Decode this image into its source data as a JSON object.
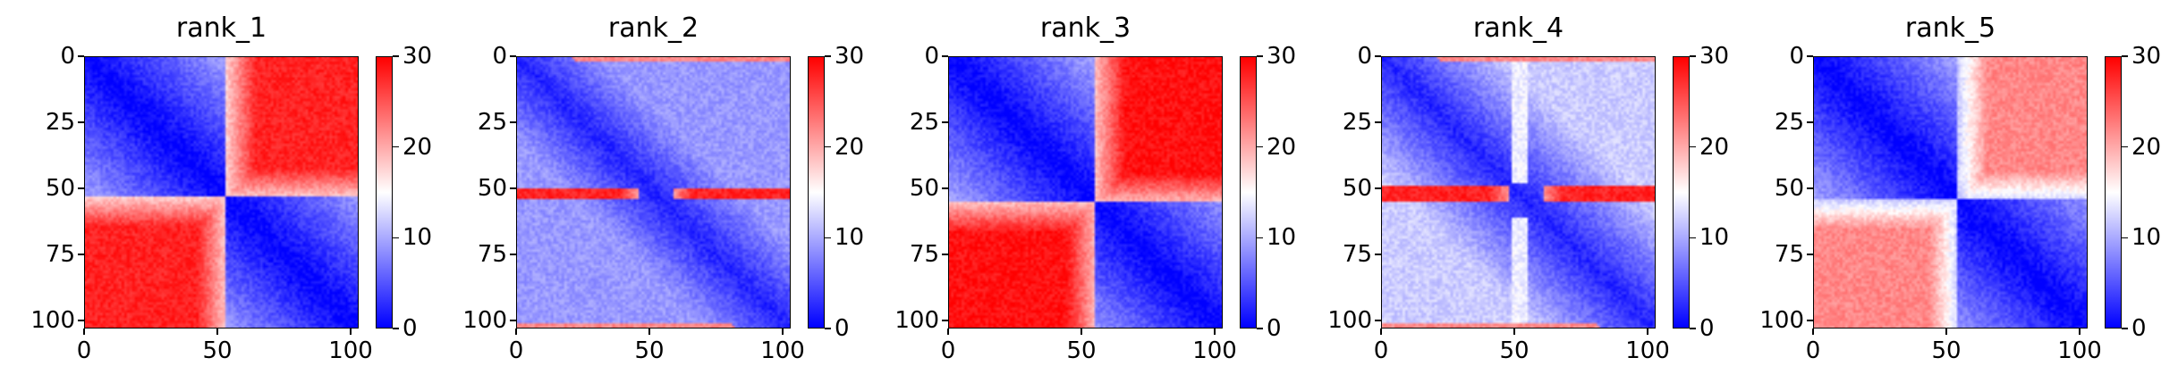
{
  "chart_data": [
    {
      "type": "heatmap",
      "title": "rank_1",
      "colormap": "bwr",
      "vmin": 0,
      "vmax": 30,
      "xlim": [
        0,
        103
      ],
      "ylim": [
        103,
        0
      ],
      "xticks": [
        "0",
        "50",
        "100"
      ],
      "yticks": [
        "0",
        "25",
        "50",
        "75",
        "100"
      ],
      "colorbar_ticks": [
        "0",
        "10",
        "20",
        "30"
      ],
      "structure": {
        "split": 53,
        "off_diagonal_level": 28,
        "block_axes": [
          "lower-left",
          "upper-right"
        ]
      }
    },
    {
      "type": "heatmap",
      "title": "rank_2",
      "colormap": "bwr",
      "vmin": 0,
      "vmax": 30,
      "xlim": [
        0,
        103
      ],
      "ylim": [
        103,
        0
      ],
      "xticks": [
        "0",
        "50",
        "100"
      ],
      "yticks": [
        "0",
        "25",
        "50",
        "75",
        "100"
      ],
      "colorbar_ticks": [
        "0",
        "10",
        "20",
        "30"
      ],
      "structure": {
        "split": 52,
        "off_diagonal_level": 9,
        "red_band_rows": [
          50,
          53
        ],
        "red_band_edge_rows": [
          0,
          101
        ]
      }
    },
    {
      "type": "heatmap",
      "title": "rank_3",
      "colormap": "bwr",
      "vmin": 0,
      "vmax": 30,
      "xlim": [
        0,
        103
      ],
      "ylim": [
        103,
        0
      ],
      "xticks": [
        "0",
        "50",
        "100"
      ],
      "yticks": [
        "0",
        "25",
        "50",
        "75",
        "100"
      ],
      "colorbar_ticks": [
        "0",
        "10",
        "20",
        "30"
      ],
      "structure": {
        "split": 55,
        "off_diagonal_level": 29,
        "block_axes": [
          "lower-left",
          "upper-right"
        ]
      }
    },
    {
      "type": "heatmap",
      "title": "rank_4",
      "colormap": "bwr",
      "vmin": 0,
      "vmax": 30,
      "xlim": [
        0,
        103
      ],
      "ylim": [
        103,
        0
      ],
      "xticks": [
        "0",
        "50",
        "100"
      ],
      "yticks": [
        "0",
        "25",
        "50",
        "75",
        "100"
      ],
      "colorbar_ticks": [
        "0",
        "10",
        "20",
        "30"
      ],
      "structure": {
        "split": 54,
        "off_diagonal_level": 12,
        "red_band_rows": [
          49,
          54
        ],
        "red_band_edge_rows": [
          0,
          101
        ]
      }
    },
    {
      "type": "heatmap",
      "title": "rank_5",
      "colormap": "bwr",
      "vmin": 0,
      "vmax": 30,
      "xlim": [
        0,
        103
      ],
      "ylim": [
        103,
        0
      ],
      "xticks": [
        "0",
        "50",
        "100"
      ],
      "yticks": [
        "0",
        "25",
        "50",
        "75",
        "100"
      ],
      "colorbar_ticks": [
        "0",
        "10",
        "20",
        "30"
      ],
      "structure": {
        "split": 54,
        "off_diagonal_level": 22,
        "block_axes": [
          "lower-left",
          "upper-right"
        ]
      }
    }
  ]
}
